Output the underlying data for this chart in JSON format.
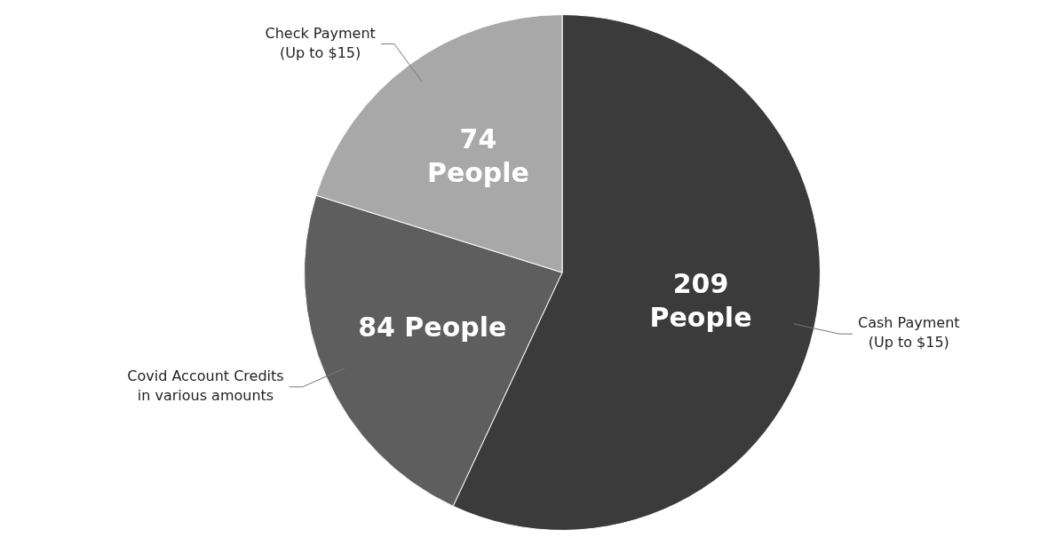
{
  "chart_data": {
    "type": "pie",
    "categories": [
      "Cash Payment\n(Up to $15)",
      "Covid Account Credits\nin various amounts",
      "Check Payment\n(Up to $15)"
    ],
    "values": [
      209,
      84,
      74
    ],
    "colors": [
      "#3b3b3b",
      "#5e5e5e",
      "#a8a8a8"
    ],
    "value_labels": [
      "209\nPeople",
      "84 People",
      "74\nPeople"
    ],
    "legend": false
  }
}
